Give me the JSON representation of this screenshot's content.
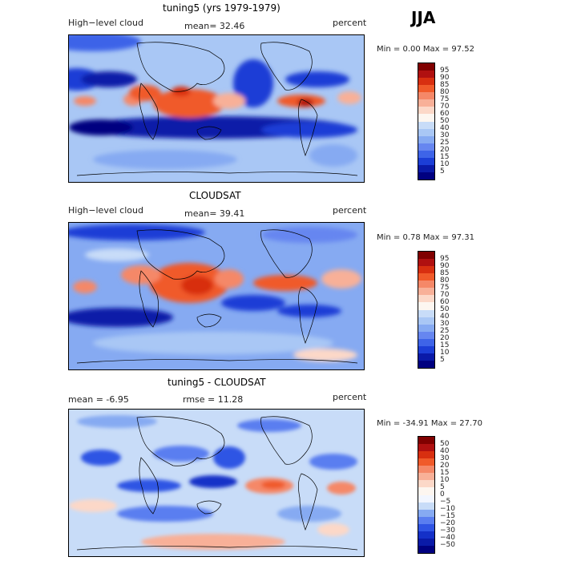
{
  "season": "JJA",
  "panels": [
    {
      "title": "tuning5 (yrs 1979-1979)",
      "left_label": "High−level cloud",
      "center_label": "mean=  32.46",
      "right_label": "percent",
      "minmax": "Min =    0.00 Max =   97.52",
      "levels": [
        "95",
        "90",
        "85",
        "80",
        "75",
        "70",
        "60",
        "50",
        "40",
        "30",
        "25",
        "20",
        "15",
        "10",
        "5"
      ],
      "colors": [
        "#800000",
        "#b01010",
        "#d82f10",
        "#f05a2a",
        "#f58868",
        "#f8b098",
        "#fcd8c8",
        "#fdf6f0",
        "#c8dcf8",
        "#a9c7f5",
        "#86aaf2",
        "#6686f0",
        "#3e64e8",
        "#1c3ed6",
        "#0a1aa8",
        "#000080"
      ]
    },
    {
      "title": "CLOUDSAT",
      "left_label": "High−level cloud",
      "center_label": "mean=  39.41",
      "right_label": "percent",
      "minmax": "Min =    0.78 Max =   97.31",
      "levels": [
        "95",
        "90",
        "85",
        "80",
        "75",
        "70",
        "60",
        "50",
        "40",
        "30",
        "25",
        "20",
        "15",
        "10",
        "5"
      ],
      "colors": [
        "#800000",
        "#b01010",
        "#d82f10",
        "#f05a2a",
        "#f58868",
        "#f8b098",
        "#fcd8c8",
        "#fdf6f0",
        "#c8dcf8",
        "#a9c7f5",
        "#86aaf2",
        "#6686f0",
        "#3e64e8",
        "#1c3ed6",
        "#0a1aa8",
        "#000080"
      ]
    },
    {
      "title": "tuning5 - CLOUDSAT",
      "left_label": "mean =   -6.95",
      "center_label": "rmse =   11.28",
      "right_label": "percent",
      "minmax": "Min = -34.91 Max =   27.70",
      "levels": [
        "50",
        "40",
        "30",
        "20",
        "15",
        "10",
        "5",
        "0",
        "−5",
        "−10",
        "−15",
        "−20",
        "−30",
        "−40",
        "−50"
      ],
      "colors": [
        "#800000",
        "#b01010",
        "#d82f10",
        "#f05a2a",
        "#f58868",
        "#f8b098",
        "#fcd8c8",
        "#fdf6f0",
        "#f2f6ff",
        "#c8dcf8",
        "#86aaf2",
        "#5a7ef0",
        "#2f54e4",
        "#1430c8",
        "#0a1aa8",
        "#000080"
      ]
    }
  ]
}
